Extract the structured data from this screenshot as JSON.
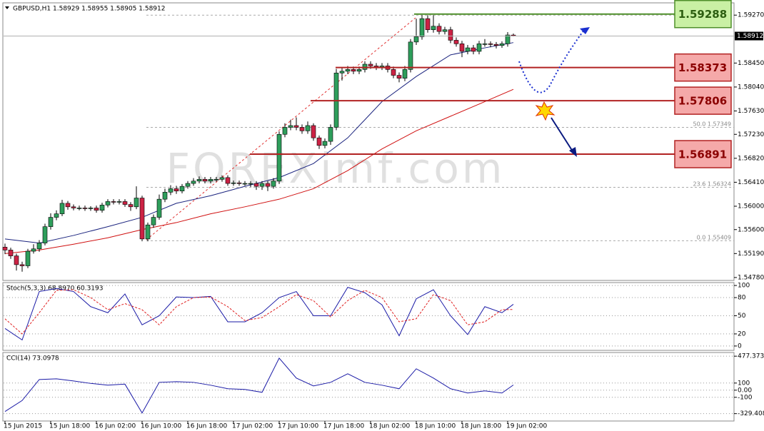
{
  "chart_data": [
    {
      "type": "candlestick",
      "title": "GBPUSD,H1 1.58929 1.58955 1.58905 1.58912",
      "watermark": "FOREXimf.com",
      "up_color": "#2e9e5b",
      "down_color": "#cc2244",
      "categories": [
        "15 Jun 2015",
        null,
        null,
        null,
        null,
        null,
        null,
        null,
        "15 Jun 18:00",
        null,
        null,
        null,
        null,
        null,
        null,
        null,
        "16 Jun 02:00",
        null,
        null,
        null,
        null,
        null,
        null,
        null,
        "16 Jun 10:00",
        null,
        null,
        null,
        null,
        null,
        null,
        null,
        "16 Jun 18:00",
        null,
        null,
        null,
        null,
        null,
        null,
        null,
        "17 Jun 02:00",
        null,
        null,
        null,
        null,
        null,
        null,
        null,
        "17 Jun 10:00",
        null,
        null,
        null,
        null,
        null,
        null,
        null,
        "17 Jun 18:00",
        null,
        null,
        null,
        null,
        null,
        null,
        null,
        "18 Jun 02:00",
        null,
        null,
        null,
        null,
        null,
        null,
        null,
        "18 Jun 10:00",
        null,
        null,
        null,
        null,
        null,
        null,
        null,
        "18 Jun 18:00",
        null,
        null,
        null,
        null,
        null,
        null,
        null,
        "19 Jun 02:00",
        null
      ],
      "open": [
        1.553,
        1.5525,
        1.5515,
        1.55,
        1.5498,
        1.5523,
        1.5527,
        1.5537,
        1.5565,
        1.5581,
        1.5587,
        1.5605,
        1.5599,
        1.5597,
        1.5597,
        1.5596,
        1.5597,
        1.5593,
        1.5602,
        1.5608,
        1.5607,
        1.5608,
        1.5603,
        1.5599,
        1.5614,
        1.5544,
        1.5568,
        1.5581,
        1.5612,
        1.5624,
        1.563,
        1.5626,
        1.5634,
        1.5639,
        1.5643,
        1.5646,
        1.5643,
        1.5646,
        1.5646,
        1.5649,
        1.5639,
        1.564,
        1.5639,
        1.5639,
        1.5639,
        1.5634,
        1.5639,
        1.5634,
        1.5643,
        1.5723,
        1.5735,
        1.5738,
        1.5735,
        1.5729,
        1.5738,
        1.5717,
        1.5704,
        1.5711,
        1.5735,
        1.5828,
        1.5831,
        1.5834,
        1.5831,
        1.5834,
        1.5843,
        1.584,
        1.5838,
        1.584,
        1.5834,
        1.5824,
        1.5819,
        1.5834,
        1.5881,
        1.589,
        1.5921,
        1.5902,
        1.5908,
        1.5899,
        1.5902,
        1.5884,
        1.5878,
        1.5865,
        1.5871,
        1.5865,
        1.5878,
        1.5878,
        1.5877,
        1.5875,
        1.5878,
        1.58929
      ],
      "high": [
        1.5536,
        1.5529,
        1.5519,
        1.5505,
        1.5527,
        1.5535,
        1.5542,
        1.557,
        1.5588,
        1.5593,
        1.5611,
        1.5609,
        1.5603,
        1.5601,
        1.5601,
        1.56,
        1.5601,
        1.5606,
        1.5612,
        1.5612,
        1.5612,
        1.5612,
        1.5607,
        1.5634,
        1.5618,
        1.5572,
        1.5586,
        1.562,
        1.563,
        1.5636,
        1.5635,
        1.5638,
        1.5643,
        1.5648,
        1.5651,
        1.565,
        1.565,
        1.565,
        1.5653,
        1.5653,
        1.5644,
        1.5644,
        1.5643,
        1.5643,
        1.5643,
        1.5643,
        1.5643,
        1.5648,
        1.5728,
        1.5742,
        1.5748,
        1.5752,
        1.574,
        1.5745,
        1.5742,
        1.5721,
        1.5716,
        1.574,
        1.5835,
        1.5838,
        1.584,
        1.5839,
        1.5839,
        1.5848,
        1.5848,
        1.5845,
        1.5845,
        1.5845,
        1.5839,
        1.5829,
        1.584,
        1.5886,
        1.5921,
        1.5927,
        1.5927,
        1.5927,
        1.5913,
        1.5907,
        1.5907,
        1.5889,
        1.5883,
        1.5876,
        1.5876,
        1.5883,
        1.5886,
        1.5882,
        1.5881,
        1.5882,
        1.5898,
        1.58955
      ],
      "low": [
        1.5518,
        1.551,
        1.549,
        1.5488,
        1.5494,
        1.5519,
        1.5522,
        1.5533,
        1.556,
        1.5576,
        1.5583,
        1.5594,
        1.5593,
        1.5593,
        1.5592,
        1.5592,
        1.5589,
        1.5589,
        1.5598,
        1.5603,
        1.5603,
        1.5599,
        1.5592,
        1.5595,
        1.554,
        1.554,
        1.5563,
        1.5577,
        1.5607,
        1.5619,
        1.5621,
        1.5622,
        1.563,
        1.5635,
        1.5639,
        1.5639,
        1.5639,
        1.5642,
        1.5642,
        1.5635,
        1.5635,
        1.5635,
        1.5635,
        1.5633,
        1.5628,
        1.5628,
        1.5626,
        1.563,
        1.5638,
        1.5718,
        1.573,
        1.573,
        1.5724,
        1.5724,
        1.5712,
        1.5698,
        1.5699,
        1.5705,
        1.573,
        1.5815,
        1.5826,
        1.5826,
        1.5826,
        1.5829,
        1.5835,
        1.5833,
        1.5833,
        1.5829,
        1.5819,
        1.5812,
        1.5814,
        1.5829,
        1.5876,
        1.5885,
        1.5897,
        1.5897,
        1.5894,
        1.5894,
        1.5879,
        1.5873,
        1.5855,
        1.586,
        1.586,
        1.586,
        1.5873,
        1.5872,
        1.587,
        1.5871,
        1.5873,
        1.58905
      ],
      "close": [
        1.5525,
        1.5515,
        1.55,
        1.5498,
        1.5523,
        1.5527,
        1.5537,
        1.5565,
        1.5581,
        1.5587,
        1.5605,
        1.5599,
        1.5597,
        1.5597,
        1.5596,
        1.5597,
        1.5593,
        1.5602,
        1.5608,
        1.5607,
        1.5608,
        1.5603,
        1.5599,
        1.5614,
        1.5544,
        1.5568,
        1.5581,
        1.5612,
        1.5624,
        1.563,
        1.5626,
        1.5634,
        1.5639,
        1.5643,
        1.5646,
        1.5643,
        1.5646,
        1.5646,
        1.5649,
        1.5639,
        1.564,
        1.5639,
        1.5639,
        1.5639,
        1.5634,
        1.5639,
        1.5634,
        1.5643,
        1.5723,
        1.5735,
        1.5738,
        1.5735,
        1.5729,
        1.5738,
        1.5717,
        1.5704,
        1.5711,
        1.5735,
        1.5828,
        1.5831,
        1.5834,
        1.5831,
        1.5834,
        1.5843,
        1.584,
        1.5838,
        1.584,
        1.5834,
        1.5824,
        1.5819,
        1.5834,
        1.5881,
        1.589,
        1.5921,
        1.5902,
        1.5908,
        1.5899,
        1.5902,
        1.5884,
        1.5878,
        1.5865,
        1.5871,
        1.5865,
        1.5878,
        1.5878,
        1.5877,
        1.5875,
        1.5878,
        1.5893,
        1.58912
      ],
      "series": [
        {
          "color": "#1a237e",
          "x": [
            0,
            6,
            12,
            18,
            24,
            30,
            36,
            42,
            48,
            54,
            60,
            66,
            72,
            78,
            84,
            89
          ],
          "values": [
            1.5544,
            1.5537,
            1.555,
            1.5565,
            1.5581,
            1.5605,
            1.5618,
            1.5634,
            1.5649,
            1.5673,
            1.5717,
            1.5779,
            1.5822,
            1.5859,
            1.5871,
            1.588
          ]
        },
        {
          "color": "#d01010",
          "x": [
            0,
            6,
            12,
            18,
            24,
            30,
            36,
            42,
            48,
            54,
            60,
            66,
            72,
            78,
            84,
            89
          ],
          "values": [
            1.5519,
            1.5525,
            1.5535,
            1.5546,
            1.556,
            1.5572,
            1.5587,
            1.5599,
            1.5612,
            1.563,
            1.5661,
            1.5698,
            1.5729,
            1.5754,
            1.5779,
            1.58
          ]
        }
      ],
      "levels": [
        {
          "value": 1.59288,
          "color": "#4f8f2a"
        },
        {
          "value": 1.58373,
          "color": "#b22222"
        },
        {
          "value": 1.57806,
          "color": "#b22222"
        },
        {
          "value": 1.56891,
          "color": "#b22222"
        }
      ],
      "fib": [
        {
          "label": "50.0",
          "value": 1.57349
        },
        {
          "label": "23.6",
          "value": 1.56324
        },
        {
          "label": "0.0",
          "value": 1.55409
        }
      ],
      "ylim": [
        1.5473,
        1.5948
      ],
      "yticks": [
        {
          "value": 1.5927,
          "label": "1.59270"
        },
        {
          "value": 1.5845,
          "label": "1.58450"
        },
        {
          "value": 1.5804,
          "label": "1.58040"
        },
        {
          "value": 1.5763,
          "label": "1.57630"
        },
        {
          "value": 1.5723,
          "label": "1.57230"
        },
        {
          "value": 1.5682,
          "label": "1.56820"
        },
        {
          "value": 1.5641,
          "label": "1.56410"
        },
        {
          "value": 1.56,
          "label": "1.56000"
        },
        {
          "value": 1.556,
          "label": "1.55600"
        },
        {
          "value": 1.5519,
          "label": "1.55190"
        },
        {
          "value": 1.5478,
          "label": "1.54780"
        }
      ]
    },
    {
      "type": "line",
      "title": "Stoch(5,3,3) 68.8970 60.3193",
      "x": [
        0,
        3,
        6,
        9,
        12,
        15,
        18,
        21,
        24,
        27,
        30,
        33,
        36,
        39,
        42,
        45,
        48,
        51,
        54,
        57,
        60,
        63,
        66,
        69,
        72,
        75,
        78,
        81,
        84,
        87,
        89
      ],
      "series": [
        {
          "color": "#1a1aa6",
          "dash": false,
          "values": [
            29,
            10,
            90,
            95,
            90,
            65,
            55,
            86,
            35,
            50,
            81,
            80,
            82,
            40,
            40,
            55,
            80,
            90,
            50,
            50,
            97,
            88,
            68,
            17,
            78,
            93,
            50,
            19,
            65,
            55,
            68.897
          ]
        },
        {
          "color": "#e02020",
          "dash": true,
          "values": [
            45,
            20,
            55,
            92,
            93,
            80,
            60,
            70,
            60,
            35,
            65,
            80,
            81,
            65,
            42,
            47,
            65,
            85,
            75,
            48,
            75,
            92,
            80,
            40,
            45,
            85,
            75,
            35,
            40,
            60,
            60.3193
          ]
        }
      ],
      "ylim": [
        -7.2,
        104.8
      ],
      "yticks": [
        100,
        80,
        50,
        20,
        0
      ]
    },
    {
      "type": "line",
      "title": "CCI(14) 73.0978",
      "x": [
        0,
        3,
        6,
        9,
        12,
        15,
        18,
        21,
        24,
        27,
        30,
        33,
        36,
        39,
        42,
        45,
        48,
        51,
        54,
        57,
        60,
        63,
        66,
        69,
        72,
        75,
        78,
        81,
        84,
        87,
        89
      ],
      "series": [
        {
          "color": "#1a1aa6",
          "dash": false,
          "values": [
            -300,
            -145,
            150,
            160,
            130,
            95,
            70,
            85,
            -320,
            110,
            120,
            110,
            70,
            20,
            10,
            -30,
            450,
            170,
            60,
            110,
            230,
            110,
            70,
            20,
            300,
            170,
            20,
            -40,
            -10,
            -40,
            73.0978
          ]
        }
      ],
      "ylim": [
        -433,
        529
      ],
      "yticks": [
        477.373,
        100,
        {
          "value": 0,
          "label": "0.00"
        },
        -100,
        -329.4087
      ]
    }
  ]
}
